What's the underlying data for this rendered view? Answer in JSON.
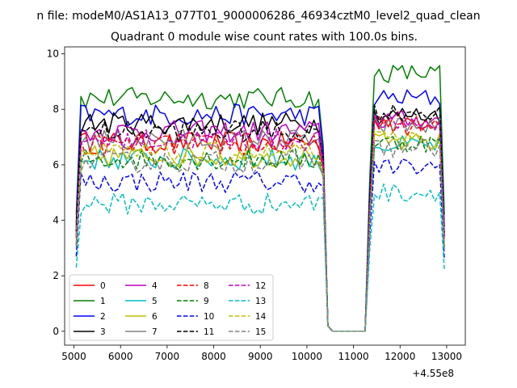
{
  "chart_data": {
    "type": "line",
    "suptitle": "n file: modeM0/AS1A13_077T01_9000006286_46934cztM0_level2_quad_clean",
    "title": "Quadrant 0 module wise count rates with 100.0s bins.",
    "xlabel": "",
    "ylabel": "",
    "x_offset_label": "+4.55e8",
    "xlim": [
      4800,
      13400
    ],
    "ylim": [
      -0.5,
      10.25
    ],
    "x_ticks": [
      5000,
      6000,
      7000,
      8000,
      9000,
      10000,
      11000,
      12000,
      13000
    ],
    "x_tick_labels": [
      "5000",
      "6000",
      "7000",
      "8000",
      "9000",
      "10000",
      "11000",
      "12000",
      "13000"
    ],
    "y_ticks": [
      0,
      2,
      4,
      6,
      8,
      10
    ],
    "y_tick_labels": [
      "0",
      "2",
      "4",
      "6",
      "8",
      "10"
    ],
    "grid": false,
    "legend_placement": "lower-left",
    "bin_width": 100,
    "x_start": 5050,
    "x_end": 12950,
    "gap_interval": [
      10450,
      11250
    ],
    "series": [
      {
        "name": "0",
        "color": "#ff0000",
        "dash": "solid",
        "level1": 6.8,
        "level2": 7.6
      },
      {
        "name": "1",
        "color": "#008000",
        "dash": "solid",
        "level1": 8.4,
        "level2": 9.3
      },
      {
        "name": "2",
        "color": "#0000ff",
        "dash": "solid",
        "level1": 7.8,
        "level2": 8.4
      },
      {
        "name": "3",
        "color": "#000000",
        "dash": "solid",
        "level1": 7.5,
        "level2": 7.8
      },
      {
        "name": "4",
        "color": "#bf00bf",
        "dash": "solid",
        "level1": 7.2,
        "level2": 7.6
      },
      {
        "name": "5",
        "color": "#00bfbf",
        "dash": "solid",
        "level1": 6.2,
        "level2": 6.7
      },
      {
        "name": "6",
        "color": "#bfbf00",
        "dash": "solid",
        "level1": 6.3,
        "level2": 6.8
      },
      {
        "name": "7",
        "color": "#808080",
        "dash": "solid",
        "level1": 6.9,
        "level2": 7.4
      },
      {
        "name": "8",
        "color": "#ff0000",
        "dash": "dashed",
        "level1": 6.7,
        "level2": 7.4
      },
      {
        "name": "9",
        "color": "#008000",
        "dash": "dashed",
        "level1": 6.2,
        "level2": 6.8
      },
      {
        "name": "10",
        "color": "#0000ff",
        "dash": "dashed",
        "level1": 5.4,
        "level2": 5.9
      },
      {
        "name": "11",
        "color": "#000000",
        "dash": "dashed",
        "level1": 7.2,
        "level2": 7.9
      },
      {
        "name": "12",
        "color": "#bf00bf",
        "dash": "dashed",
        "level1": 6.9,
        "level2": 7.5
      },
      {
        "name": "13",
        "color": "#00bfbf",
        "dash": "dashed",
        "level1": 4.6,
        "level2": 5.0
      },
      {
        "name": "14",
        "color": "#bfbf00",
        "dash": "dashed",
        "level1": 6.4,
        "level2": 6.9
      },
      {
        "name": "15",
        "color": "#808080",
        "dash": "dashed",
        "level1": 6.1,
        "level2": 6.6
      }
    ]
  }
}
